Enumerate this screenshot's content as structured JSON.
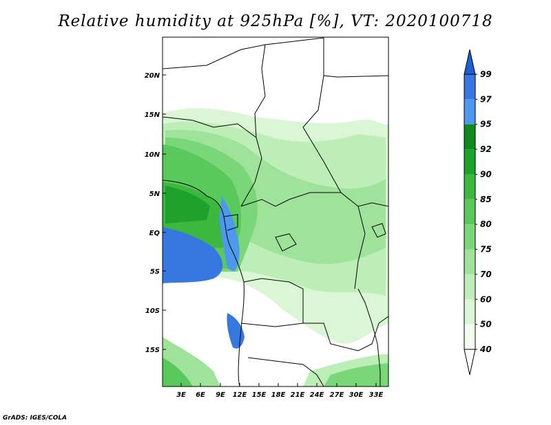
{
  "title": "Relative humidity at 925hPa [%], VT: 2020100718",
  "credit": "GrADS: IGES/COLA",
  "map": {
    "region": "Central Africa",
    "lon_range": [
      0,
      35
    ],
    "lat_range": [
      -19,
      24
    ],
    "lon_ticks": [
      "3E",
      "6E",
      "9E",
      "12E",
      "15E",
      "18E",
      "21E",
      "24E",
      "27E",
      "30E",
      "33E"
    ],
    "lat_ticks": [
      "20N",
      "15N",
      "10N",
      "5N",
      "EQ",
      "5S",
      "10S",
      "15S"
    ]
  },
  "colorbar": {
    "levels": [
      "99",
      "97",
      "95",
      "92",
      "90",
      "85",
      "80",
      "75",
      "70",
      "60",
      "50",
      "40"
    ],
    "colors": [
      "#1f5fd6",
      "#3778e0",
      "#4d99ee",
      "#0f8a1e",
      "#1fa22c",
      "#3db83f",
      "#58c95a",
      "#79d779",
      "#9fe39a",
      "#bdeeb7",
      "#daf6d4",
      "#f2fcef",
      "#ffffff"
    ]
  }
}
